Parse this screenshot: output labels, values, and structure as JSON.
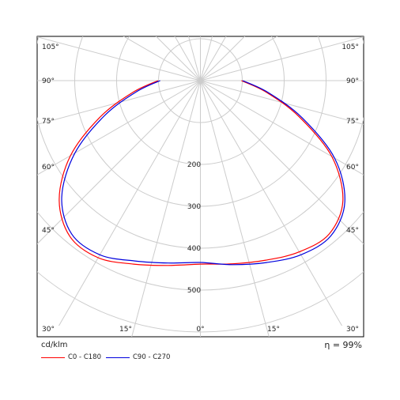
{
  "chart_data": {
    "type": "polar",
    "unit_label": "cd/klm",
    "efficiency_label": "η = 99%",
    "radial_ticks": [
      {
        "value": 200,
        "label": "200"
      },
      {
        "value": 300,
        "label": "300"
      },
      {
        "value": 400,
        "label": "400"
      },
      {
        "value": 500,
        "label": "500"
      }
    ],
    "radial_max": 600,
    "angle_labels_left": [
      "105°",
      "90°",
      "75°",
      "60°",
      "45°",
      "30°",
      "15°"
    ],
    "angle_labels_right": [
      "105°",
      "90°",
      "75°",
      "60°",
      "45°",
      "30°",
      "15°"
    ],
    "angle_label_bottom_center": "0°",
    "series": [
      {
        "name": "C0 - C180",
        "color": "#ff0000",
        "angles": [
          0,
          10,
          20,
          30,
          40,
          50,
          60,
          70,
          80,
          90
        ],
        "left": [
          438,
          448,
          466,
          488,
          485,
          440,
          358,
          255,
          165,
          101
        ],
        "right": [
          438,
          444,
          456,
          472,
          478,
          444,
          362,
          250,
          160,
          98
        ]
      },
      {
        "name": "C90 - C270",
        "color": "#0000dd",
        "angles": [
          0,
          10,
          20,
          30,
          40,
          50,
          60,
          70,
          80,
          90
        ],
        "left": [
          434,
          442,
          458,
          480,
          478,
          432,
          346,
          243,
          156,
          96
        ],
        "right": [
          436,
          446,
          462,
          480,
          484,
          450,
          370,
          258,
          165,
          101
        ]
      }
    ]
  }
}
